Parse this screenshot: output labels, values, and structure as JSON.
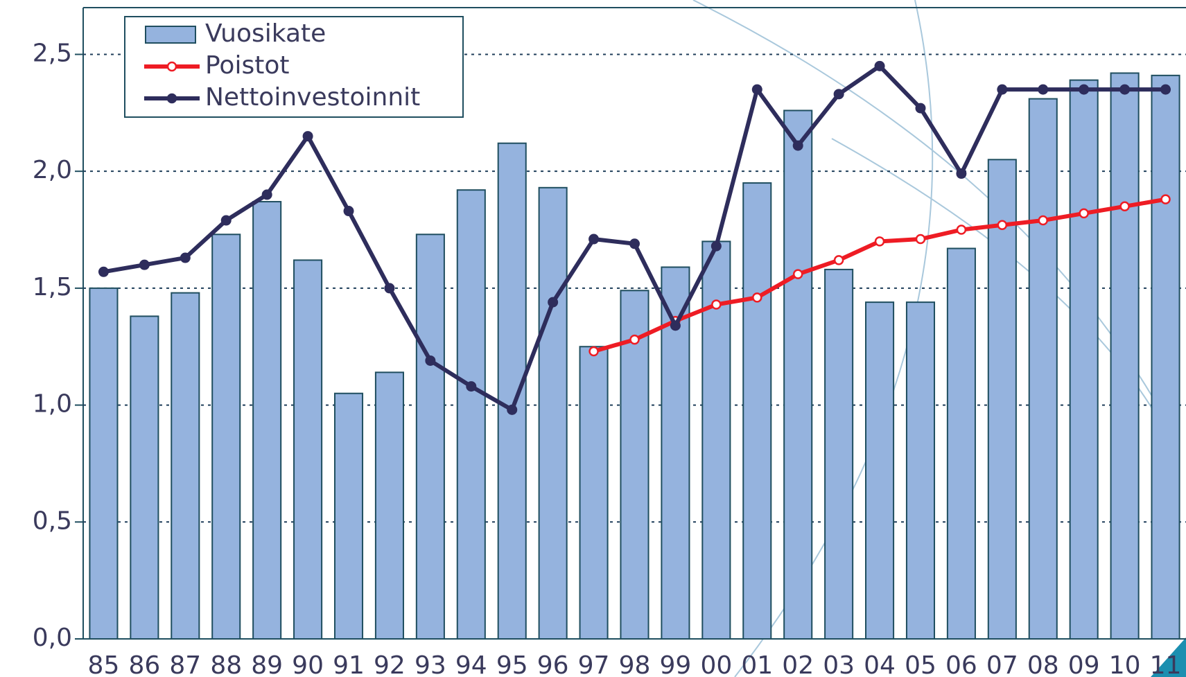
{
  "chart_data": {
    "type": "bar",
    "categories": [
      "85",
      "86",
      "87",
      "88",
      "89",
      "90",
      "91",
      "92",
      "93",
      "94",
      "95",
      "96",
      "97",
      "98",
      "99",
      "00",
      "01",
      "02",
      "03",
      "04",
      "05",
      "06",
      "07",
      "08",
      "09",
      "10",
      "11"
    ],
    "series": [
      {
        "name": "Vuosikate",
        "type": "bar",
        "color": "#95b3de",
        "values": [
          1.5,
          1.38,
          1.48,
          1.73,
          1.87,
          1.62,
          1.05,
          1.14,
          1.73,
          1.92,
          2.12,
          1.93,
          1.25,
          1.49,
          1.59,
          1.7,
          1.95,
          2.26,
          1.58,
          1.44,
          1.44,
          1.67,
          2.05,
          2.31,
          2.39,
          2.42,
          2.41
        ]
      },
      {
        "name": "Poistot",
        "type": "line",
        "color": "#ee1c24",
        "marker": "open",
        "values": [
          null,
          null,
          null,
          null,
          null,
          null,
          null,
          null,
          null,
          null,
          null,
          null,
          1.23,
          1.28,
          1.36,
          1.43,
          1.46,
          1.56,
          1.62,
          1.7,
          1.71,
          1.75,
          1.77,
          1.79,
          1.82,
          1.85,
          1.88
        ]
      },
      {
        "name": "Nettoinvestoinnit",
        "type": "line",
        "color": "#2e2d5c",
        "marker": "filled",
        "values": [
          1.57,
          1.6,
          1.63,
          1.79,
          1.9,
          2.15,
          1.83,
          1.5,
          1.19,
          1.08,
          0.98,
          1.44,
          1.71,
          1.69,
          1.34,
          1.68,
          2.35,
          2.11,
          2.33,
          2.45,
          2.27,
          1.99,
          2.35,
          2.35,
          2.35,
          2.35,
          2.35
        ]
      }
    ],
    "ylim": [
      0,
      2.7
    ],
    "yticks": [
      {
        "value": 0,
        "label": "0,0"
      },
      {
        "value": 0.5,
        "label": "0,5"
      },
      {
        "value": 1,
        "label": "1,0"
      },
      {
        "value": 1.5,
        "label": "1,5"
      },
      {
        "value": 2,
        "label": "2,0"
      },
      {
        "value": 2.5,
        "label": "2,5"
      }
    ],
    "grid": true
  }
}
